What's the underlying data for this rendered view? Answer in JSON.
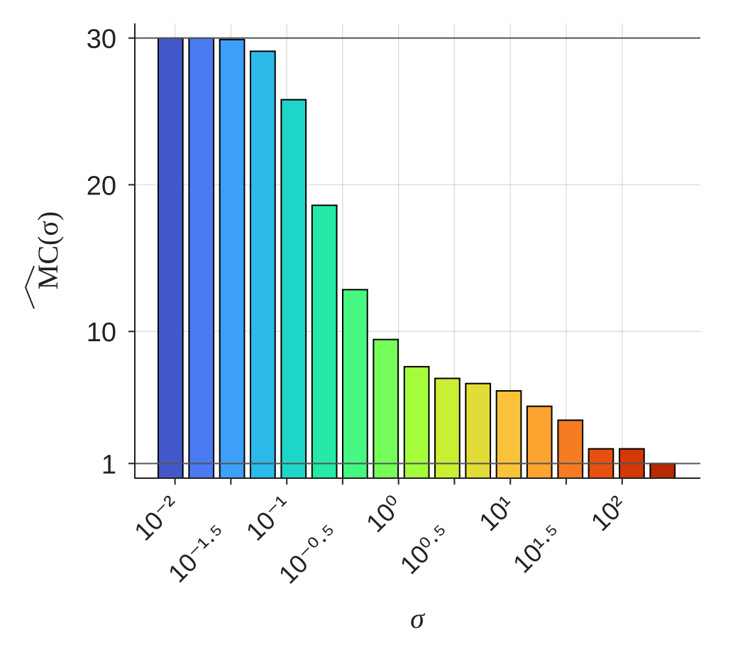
{
  "chart_data": {
    "type": "bar",
    "xlabel": "σ",
    "ylabel": "MC(σ)",
    "log_x": true,
    "x": [
      0.00912,
      0.0172,
      0.0324,
      0.061,
      0.115,
      0.217,
      0.408,
      0.769,
      1.45,
      2.73,
      5.14,
      9.68,
      18.2,
      34.4,
      64.7,
      122,
      230
    ],
    "values": [
      30,
      30,
      29.9,
      29.1,
      25.8,
      18.6,
      12.85,
      9.45,
      7.6,
      6.8,
      6.45,
      5.95,
      4.9,
      3.95,
      2.0,
      2.0,
      1.0
    ],
    "colors": [
      "#4358cb",
      "#4a7af2",
      "#3d9ff8",
      "#2bbae9",
      "#1ed6c8",
      "#25eaa6",
      "#46f882",
      "#77fd5a",
      "#a4fc3c",
      "#c8ef34",
      "#e2dc38",
      "#f8c33a",
      "#fca330",
      "#f67c22",
      "#e75110",
      "#d43806",
      "#b62a02"
    ],
    "xlim": [
      0.00437,
      501
    ],
    "xticks": [
      {
        "value": 0.01,
        "label": "10⁻²"
      },
      {
        "value": 0.0316,
        "label": "10⁻¹·⁵"
      },
      {
        "value": 0.1,
        "label": "10⁻¹"
      },
      {
        "value": 0.316,
        "label": "10⁻⁰·⁵"
      },
      {
        "value": 1,
        "label": "10⁰"
      },
      {
        "value": 3.16,
        "label": "10⁰·⁵"
      },
      {
        "value": 10,
        "label": "10¹"
      },
      {
        "value": 31.6,
        "label": "10¹·⁵"
      },
      {
        "value": 100,
        "label": "10²"
      }
    ],
    "ylim": [
      0,
      31
    ],
    "yticks": [
      1,
      10,
      20,
      30
    ],
    "reference_lines": [
      30,
      1
    ],
    "grid": true
  }
}
